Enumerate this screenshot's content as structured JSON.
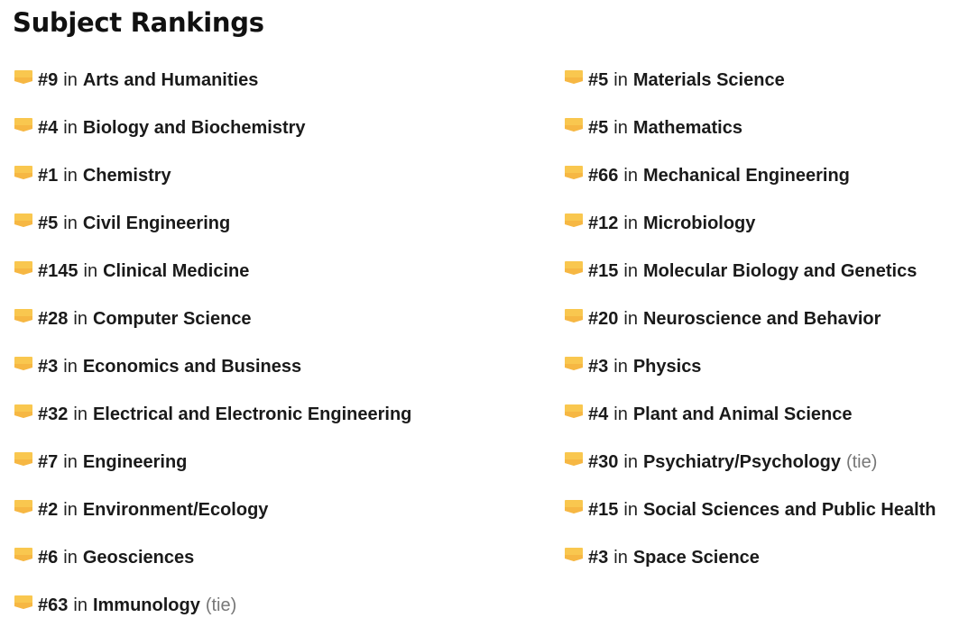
{
  "page": {
    "title": "Subject Rankings",
    "connector": "in"
  },
  "colors": {
    "flag_fill": "#F9C74F",
    "flag_shade": "#F4A93A",
    "tie_text": "#777777"
  },
  "icon": "ribbon-badge-icon",
  "left_column": [
    {
      "rank": "#9",
      "subject": "Arts and Humanities",
      "note": ""
    },
    {
      "rank": "#4",
      "subject": "Biology and Biochemistry",
      "note": ""
    },
    {
      "rank": "#1",
      "subject": "Chemistry",
      "note": ""
    },
    {
      "rank": "#5",
      "subject": "Civil Engineering",
      "note": ""
    },
    {
      "rank": "#145",
      "subject": "Clinical Medicine",
      "note": ""
    },
    {
      "rank": "#28",
      "subject": "Computer Science",
      "note": ""
    },
    {
      "rank": "#3",
      "subject": "Economics and Business",
      "note": ""
    },
    {
      "rank": "#32",
      "subject": "Electrical and Electronic Engineering",
      "note": ""
    },
    {
      "rank": "#7",
      "subject": "Engineering",
      "note": ""
    },
    {
      "rank": "#2",
      "subject": "Environment/Ecology",
      "note": ""
    },
    {
      "rank": "#6",
      "subject": "Geosciences",
      "note": ""
    },
    {
      "rank": "#63",
      "subject": "Immunology",
      "note": "(tie)"
    }
  ],
  "right_column": [
    {
      "rank": "#5",
      "subject": "Materials Science",
      "note": ""
    },
    {
      "rank": "#5",
      "subject": "Mathematics",
      "note": ""
    },
    {
      "rank": "#66",
      "subject": "Mechanical Engineering",
      "note": ""
    },
    {
      "rank": "#12",
      "subject": "Microbiology",
      "note": ""
    },
    {
      "rank": "#15",
      "subject": "Molecular Biology and Genetics",
      "note": ""
    },
    {
      "rank": "#20",
      "subject": "Neuroscience and Behavior",
      "note": ""
    },
    {
      "rank": "#3",
      "subject": "Physics",
      "note": ""
    },
    {
      "rank": "#4",
      "subject": "Plant and Animal Science",
      "note": ""
    },
    {
      "rank": "#30",
      "subject": "Psychiatry/Psychology",
      "note": "(tie)"
    },
    {
      "rank": "#15",
      "subject": "Social Sciences and Public Health",
      "note": ""
    },
    {
      "rank": "#3",
      "subject": "Space Science",
      "note": ""
    }
  ]
}
